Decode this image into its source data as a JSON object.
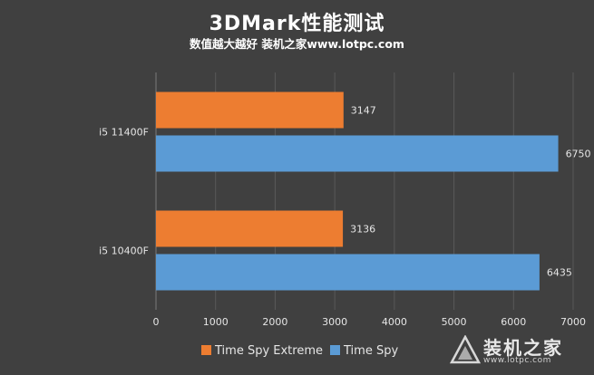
{
  "header": {
    "title": "3DMark性能测试",
    "subtitle": "数值越大越好 装机之家www.lotpc.com"
  },
  "watermark": {
    "text": "装机之家",
    "url": "www.lotpc.com"
  },
  "colors": {
    "background": "#404040",
    "time_spy_extreme": "#ED7D31",
    "time_spy": "#5B9BD5",
    "axis_text": "#E6E6E6",
    "grid": "#595959"
  },
  "chart_data": {
    "type": "bar",
    "orientation": "horizontal",
    "title": "3DMark性能测试",
    "subtitle": "数值越大越好 装机之家www.lotpc.com",
    "categories": [
      "i5 11400F",
      "i5 10400F"
    ],
    "series": [
      {
        "name": "Time Spy Extreme",
        "color": "#ED7D31",
        "values": [
          3147,
          3136
        ]
      },
      {
        "name": "Time Spy",
        "color": "#5B9BD5",
        "values": [
          6750,
          6435
        ]
      }
    ],
    "xlim": [
      0,
      7000
    ],
    "xticks": [
      0,
      1000,
      2000,
      3000,
      4000,
      5000,
      6000,
      7000
    ],
    "grid": true,
    "legend_position": "bottom"
  }
}
